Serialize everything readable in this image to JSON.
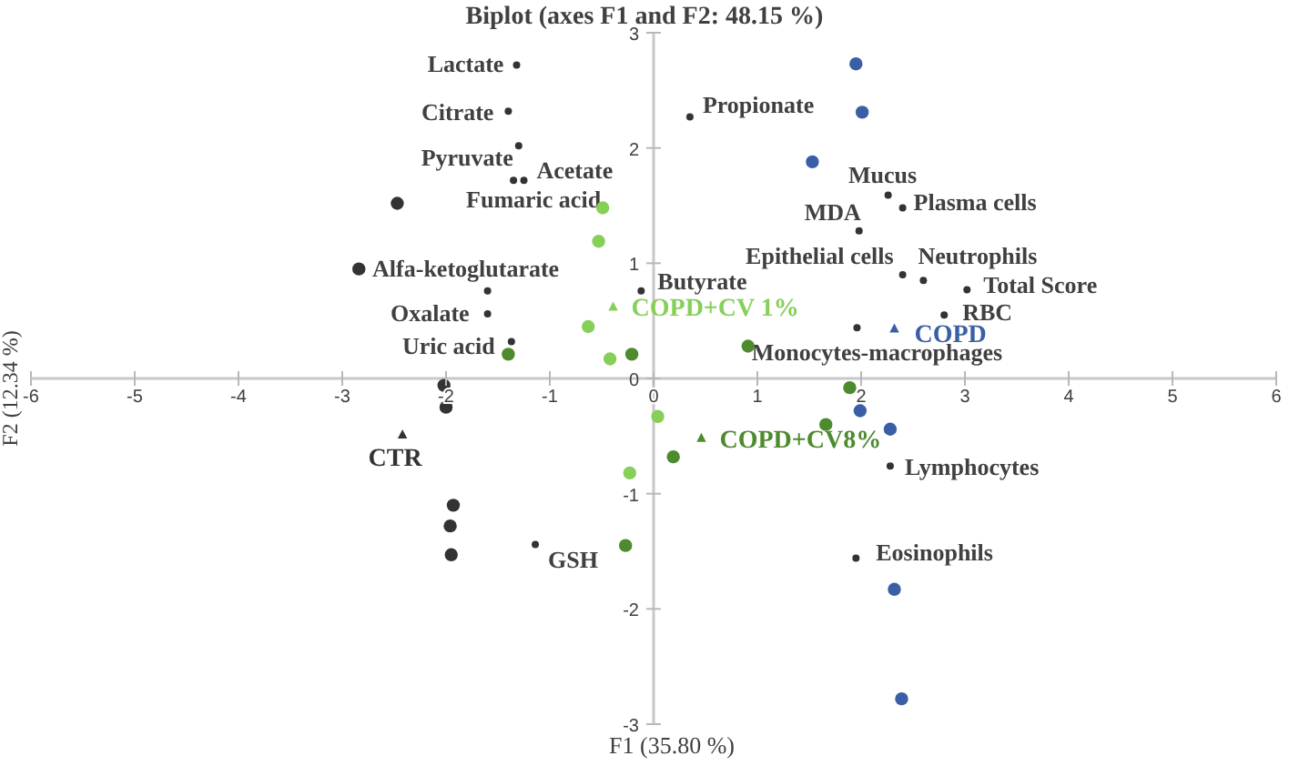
{
  "chart_data": {
    "type": "scatter",
    "title": "Biplot (axes F1 and F2: 48.15 %)",
    "xlabel": "F1 (35.80 %)",
    "ylabel": "F2 (12.34 %)",
    "xlim": [
      -6,
      6
    ],
    "xticks": [
      -6,
      -5,
      -4,
      -3,
      -2,
      -1,
      0,
      1,
      2,
      3,
      4,
      5,
      6
    ],
    "ylim": [
      -3,
      3
    ],
    "yticks": [
      -3,
      -2,
      -1,
      0,
      1,
      2,
      3
    ],
    "series": [
      {
        "color": "#333333",
        "marker": "circle",
        "x": [
          -1.32,
          -1.4,
          -1.3,
          -1.25,
          -1.35,
          0.35,
          -1.6,
          -1.6,
          -1.37,
          -0.12,
          2.26,
          2.4,
          1.98,
          2.4,
          2.6,
          3.02,
          2.8,
          1.96,
          2.28,
          1.95,
          -1.14
        ],
        "values": [
          2.72,
          2.32,
          2.02,
          1.72,
          1.72,
          2.27,
          0.76,
          0.56,
          0.32,
          0.76,
          1.59,
          1.48,
          1.28,
          0.9,
          0.85,
          0.77,
          0.55,
          0.44,
          -0.76,
          -1.56,
          -1.44
        ],
        "value_labels": [
          "Lactate",
          "Citrate",
          "Pyruvate",
          "Acetate",
          "Fumaric acid",
          "Propionate",
          "Alfa-ketoglutarate",
          "Oxalate",
          "Uric acid",
          "Butyrate",
          "Mucus",
          "Plasma cells",
          "MDA",
          "Epithelial cells",
          "Neutrophils",
          "Total Score",
          "RBC",
          "Monocytes-macrophages",
          "Lymphocytes",
          "Eosinophils",
          "GSH"
        ]
      },
      {
        "color": "#333333",
        "marker": "circle",
        "x": [
          -2.47,
          -2.84,
          -2.02,
          -2.0,
          -1.93,
          -1.96,
          -1.95
        ],
        "values": [
          1.52,
          0.95,
          -0.06,
          -0.25,
          -1.1,
          -1.28,
          -1.53
        ]
      },
      {
        "name": "CTR",
        "color": "#333333",
        "marker": "triangle",
        "x": [
          -2.42
        ],
        "values": [
          -0.49
        ]
      },
      {
        "color": "#3a5fa6",
        "marker": "circle",
        "x": [
          1.95,
          2.01,
          1.53,
          1.99,
          2.28,
          2.32,
          2.39
        ],
        "values": [
          2.73,
          2.31,
          1.88,
          -0.28,
          -0.44,
          -1.83,
          -2.78
        ]
      },
      {
        "name": "COPD",
        "color": "#3a5fa6",
        "marker": "triangle",
        "x": [
          2.32
        ],
        "values": [
          0.43
        ]
      },
      {
        "color": "#86d05a",
        "marker": "circle",
        "x": [
          -0.49,
          -0.53,
          -0.63,
          -0.42,
          0.04,
          -0.23
        ],
        "values": [
          1.48,
          1.19,
          0.45,
          0.17,
          -0.33,
          -0.82
        ]
      },
      {
        "name": "COPD+CV 1%",
        "color": "#86d05a",
        "marker": "triangle",
        "x": [
          -0.39
        ],
        "values": [
          0.62
        ]
      },
      {
        "color": "#4e8a2e",
        "marker": "circle",
        "x": [
          -1.4,
          -0.21,
          0.91,
          0.19,
          1.66,
          1.89,
          -0.27
        ],
        "values": [
          0.21,
          0.21,
          0.28,
          -0.68,
          -0.4,
          -0.08,
          -1.45
        ]
      },
      {
        "name": "COPD+CV8%",
        "color": "#4e8a2e",
        "marker": "triangle",
        "x": [
          0.46
        ],
        "values": [
          -0.52
        ]
      }
    ]
  }
}
